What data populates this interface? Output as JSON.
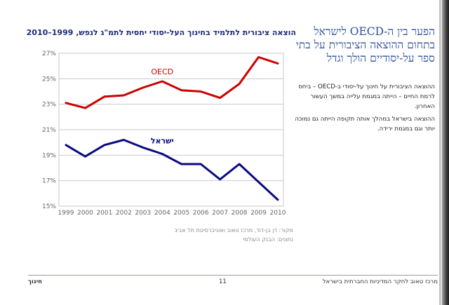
{
  "heading": "הפער בין ה-OECD לישראל בתחום ההוצאה הציבורית על בתי ספר על-יסודיים הולך וגדל",
  "paragraph1": "ההוצאה הציבורית על חינוך על-יסודי ב-OECD – ביחס לרמת החיים – הייתה במגמת עלייה במשך העשור האחרון.",
  "paragraph2": "ההוצאה בישראל במהלך אותה תקופה הייתה גם נמוכה יותר וגם במגמת ירידה.",
  "source": {
    "line1": "מקור: דן בן-דוד, מרכז טאוב ואוניברסיטת תל אביב",
    "line2": "נתונים: הבנק העולמי"
  },
  "footer": {
    "left": "חינוך",
    "page_number": "11",
    "right": "מרכז טאוב לחקר המדיניות החברתית בישראל"
  },
  "colors": {
    "oecd": "#cc0000",
    "israel": "#0a0a80",
    "title": "#1c2b78",
    "heading": "#2a4f9c"
  },
  "chart_data": {
    "type": "line",
    "title": "הוצאה ציבורית לתלמיד בחינוך העל-יסודי יחסית לתמ\"ג לנפש, 1999–2010",
    "x": [
      1999,
      2000,
      2001,
      2002,
      2003,
      2004,
      2005,
      2006,
      2007,
      2008,
      2009,
      2010
    ],
    "x_tick_labels": [
      "1999",
      "2000",
      "2001",
      "2002",
      "2003",
      "2004",
      "2005",
      "2006",
      "2007",
      "2008",
      "2009",
      "2010"
    ],
    "ylim": [
      15,
      27
    ],
    "y_ticks": [
      15,
      17,
      19,
      21,
      23,
      25,
      27
    ],
    "y_tick_labels": [
      "15%",
      "17%",
      "19%",
      "21%",
      "23%",
      "25%",
      "27%"
    ],
    "grid": true,
    "series": [
      {
        "name": "OECD",
        "label": "OECD",
        "values": [
          23.1,
          22.7,
          23.6,
          23.7,
          24.3,
          24.8,
          24.1,
          24.0,
          23.5,
          24.6,
          26.7,
          26.2
        ]
      },
      {
        "name": "Israel",
        "label": "ישראל",
        "values": [
          19.8,
          18.9,
          19.8,
          20.2,
          19.6,
          19.1,
          18.3,
          18.3,
          17.1,
          18.3,
          16.9,
          15.5
        ]
      }
    ]
  }
}
